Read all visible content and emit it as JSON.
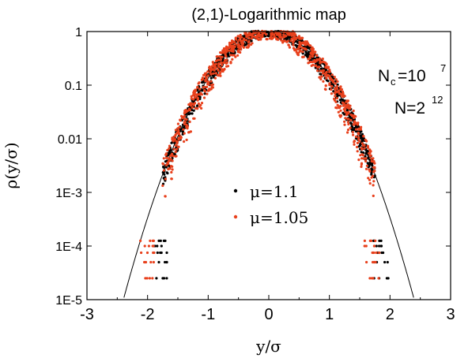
{
  "chart_data": {
    "type": "scatter",
    "title": "(2,1)-Logarithmic map",
    "xlabel": "y/σ",
    "ylabel": "ρ(y/σ)",
    "x_ticks": [
      "-3",
      "-2",
      "-1",
      "0",
      "1",
      "2",
      "3"
    ],
    "y_ticks": [
      "1",
      "0.1",
      "0.01",
      "1E-3",
      "1E-4",
      "1E-5"
    ],
    "xlim": [
      -3,
      3
    ],
    "ylim": [
      1e-05,
      1
    ],
    "y_scale": "log",
    "annotations": {
      "nc_base": "N",
      "nc_sub": "c",
      "nc_eq": "=10",
      "nc_exp": "7",
      "n_base": "N=2",
      "n_exp": "12"
    },
    "series": [
      {
        "name": "μ=1.1",
        "color": "#000000",
        "marker": "dot"
      },
      {
        "name": "μ=1.05",
        "color": "#e8401c",
        "marker": "dot"
      }
    ],
    "reference_curve": {
      "type": "gaussian",
      "mean": 0,
      "std": 0.5,
      "peak": 1,
      "color": "#000000"
    }
  }
}
